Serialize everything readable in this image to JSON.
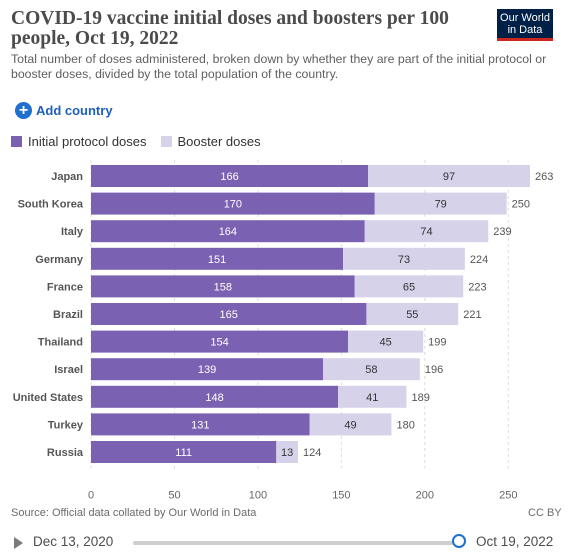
{
  "header": {
    "title": "COVID-19 vaccine initial doses and boosters per 100 people, Oct 19, 2022",
    "subtitle": "Total number of doses administered, broken down by whether they are part of the initial protocol or booster doses, divided by the total population of the country.",
    "logo_line1": "Our World",
    "logo_line2": "in Data"
  },
  "controls": {
    "add_country": "Add country",
    "add_icon": "plus-circle-icon"
  },
  "colors": {
    "initial": "#7b61b2",
    "booster": "#d6d2ea",
    "accent": "#1f6fcf"
  },
  "chart_data": {
    "type": "bar",
    "orientation": "horizontal",
    "stacked": true,
    "categories": [
      "Japan",
      "South Korea",
      "Italy",
      "Germany",
      "France",
      "Brazil",
      "Thailand",
      "Israel",
      "United States",
      "Turkey",
      "Russia"
    ],
    "series": [
      {
        "name": "Initial protocol doses",
        "values": [
          166,
          170,
          164,
          151,
          158,
          165,
          154,
          139,
          148,
          131,
          111
        ]
      },
      {
        "name": "Booster doses",
        "values": [
          97,
          79,
          74,
          73,
          65,
          55,
          45,
          58,
          41,
          49,
          13
        ]
      }
    ],
    "totals": [
      263,
      250,
      239,
      224,
      223,
      221,
      199,
      196,
      189,
      180,
      124
    ],
    "xticks": [
      0,
      50,
      100,
      150,
      200,
      250
    ],
    "xlim": [
      0,
      263
    ],
    "grid": true,
    "legend_position": "top-left"
  },
  "footer": {
    "source": "Source: Official data collated by Our World in Data",
    "license": "CC BY"
  },
  "timeline": {
    "start": "Dec 13, 2020",
    "end": "Oct 19, 2022"
  }
}
